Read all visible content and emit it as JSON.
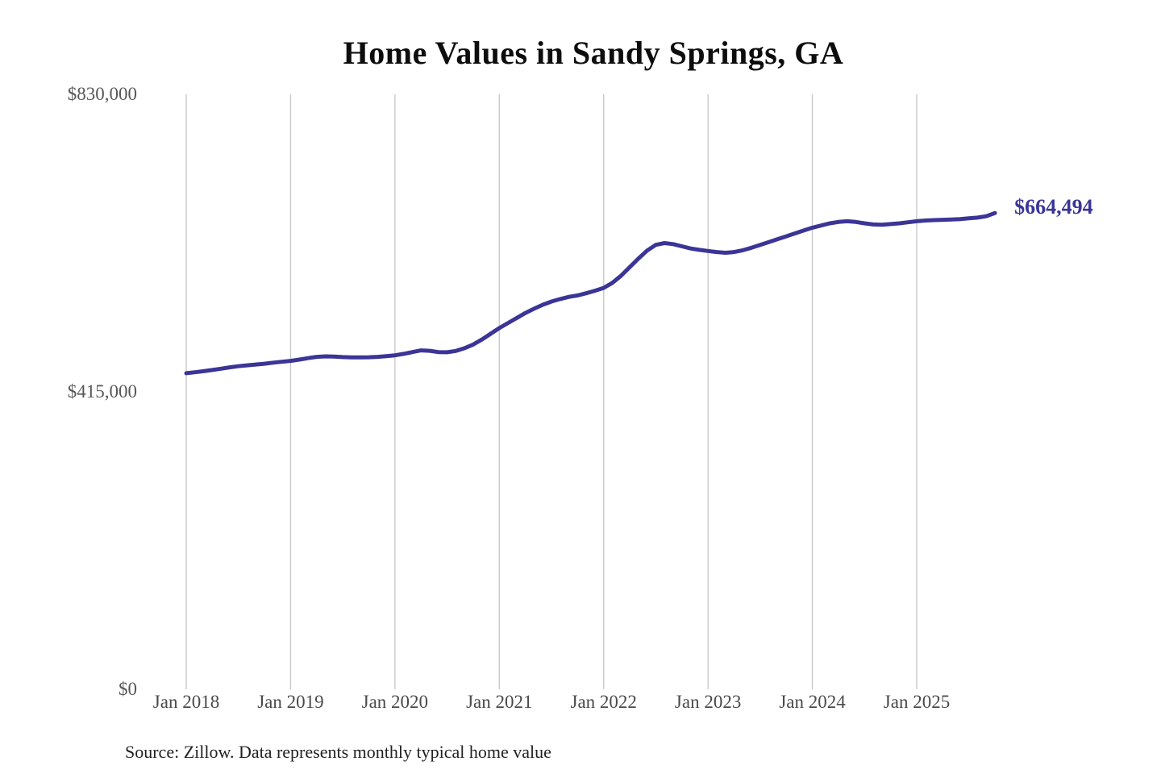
{
  "header": {
    "title": "Home Values in Sandy Springs, GA"
  },
  "footer": {
    "source_note": "Source: Zillow. Data represents monthly typical home value"
  },
  "colors": {
    "background": "#ffffff",
    "line": "#3b3597",
    "grid": "#c9c9c9",
    "title_text": "#0d0d0d",
    "y_tick_text": "#575757",
    "x_tick_text": "#4a4a4a",
    "source_text": "#222222",
    "end_label_text": "#3b3597"
  },
  "chart_data": {
    "type": "line",
    "title": "Home Values in Sandy Springs, GA",
    "xlabel": "",
    "ylabel": "",
    "legend": "none",
    "grid": "vertical-only",
    "ylim": [
      0,
      830000
    ],
    "y_tick_values": [
      830000,
      415000,
      0
    ],
    "y_tick_labels": [
      "$830,000",
      "$415,000",
      "$0"
    ],
    "x_tick_labels": [
      "Jan 2018",
      "Jan 2019",
      "Jan 2020",
      "Jan 2021",
      "Jan 2022",
      "Jan 2023",
      "Jan 2024",
      "Jan 2025"
    ],
    "x_range": {
      "start": "Jan 2018",
      "end": "Oct 2025",
      "interval": "monthly"
    },
    "end_label": "$664,494",
    "final_value": 664494,
    "series": [
      {
        "name": "Typical home value",
        "color": "#3b3597",
        "values": [
          441000,
          442300,
          443800,
          445500,
          447300,
          449200,
          450800,
          452000,
          453100,
          454300,
          455700,
          457000,
          458200,
          460000,
          462000,
          463800,
          464500,
          464200,
          463500,
          463100,
          463000,
          463200,
          463800,
          464800,
          466000,
          468000,
          470500,
          472800,
          472200,
          470500,
          470200,
          472000,
          475800,
          481000,
          488000,
          496000,
          504000,
          511000,
          518000,
          525000,
          531000,
          536500,
          541000,
          544500,
          547500,
          549500,
          552500,
          556000,
          560000,
          567000,
          577000,
          589000,
          601000,
          612000,
          620000,
          622500,
          621000,
          618000,
          615000,
          613000,
          611500,
          610000,
          609000,
          610000,
          612500,
          616000,
          620000,
          624000,
          628000,
          632000,
          636000,
          640000,
          644000,
          647000,
          650000,
          652000,
          653000,
          652000,
          650000,
          648500,
          648000,
          649000,
          650000,
          651500,
          653000,
          654000,
          654500,
          655000,
          655500,
          656000,
          657000,
          658000,
          660000,
          664494
        ]
      }
    ]
  }
}
